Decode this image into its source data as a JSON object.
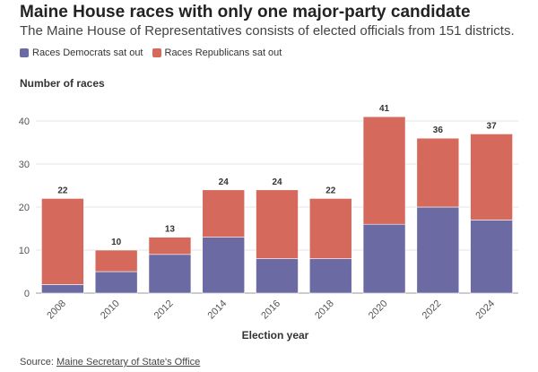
{
  "header": {
    "title": "Maine House races with only one major-party candidate",
    "subtitle": "The Maine House of Representatives consists of elected officials from 151 districts."
  },
  "source": {
    "prefix": "Source: ",
    "link_text": "Maine Secretary of State's Office"
  },
  "chart_data": {
    "type": "bar",
    "stacked": true,
    "title": "Maine House races with only one major-party candidate",
    "xlabel": "Election year",
    "ylabel": "Number of races",
    "ylim": [
      0,
      45
    ],
    "yticks": [
      0,
      10,
      20,
      30,
      40
    ],
    "categories": [
      "2008",
      "2010",
      "2012",
      "2014",
      "2016",
      "2018",
      "2020",
      "2022",
      "2024"
    ],
    "series": [
      {
        "name": "Races Democrats sat out",
        "color": "#6b6aa3",
        "values": [
          2,
          5,
          9,
          13,
          8,
          8,
          16,
          20,
          17
        ]
      },
      {
        "name": "Races Republicans sat out",
        "color": "#d4695c",
        "values": [
          20,
          5,
          4,
          11,
          16,
          14,
          25,
          16,
          20
        ]
      }
    ],
    "totals": [
      "22",
      "10",
      "13",
      "24",
      "24",
      "22",
      "41",
      "36",
      "37"
    ],
    "legend_position": "top-left"
  }
}
